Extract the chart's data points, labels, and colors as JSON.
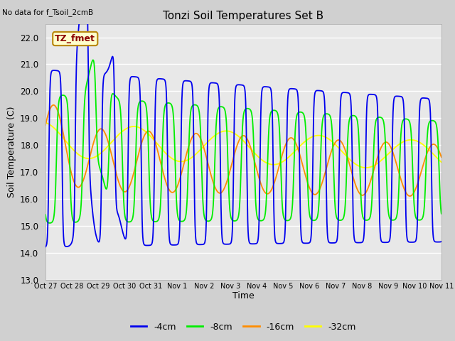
{
  "title": "Tonzi Soil Temperatures Set B",
  "no_data_label": "No data for f_Tsoil_2cmB",
  "tz_fmet_label": "TZ_fmet",
  "ylabel": "Soil Temperature (C)",
  "xlabel": "Time",
  "ylim": [
    13.0,
    22.5
  ],
  "yticks": [
    13.0,
    14.0,
    15.0,
    16.0,
    17.0,
    18.0,
    19.0,
    20.0,
    21.0,
    22.0
  ],
  "colors": {
    "4cm": "#0000ee",
    "8cm": "#00ee00",
    "16cm": "#ff8c00",
    "32cm": "#ffff00"
  },
  "legend_labels": [
    "-4cm",
    "-8cm",
    "-16cm",
    "-32cm"
  ],
  "x_tick_labels": [
    "Oct 27",
    "Oct 28",
    "Oct 29",
    "Oct 30",
    "Oct 31",
    "Nov 1",
    "Nov 2",
    "Nov 3",
    "Nov 4",
    "Nov 5",
    "Nov 6",
    "Nov 7",
    "Nov 8",
    "Nov 9",
    "Nov 10",
    "Nov 11"
  ]
}
